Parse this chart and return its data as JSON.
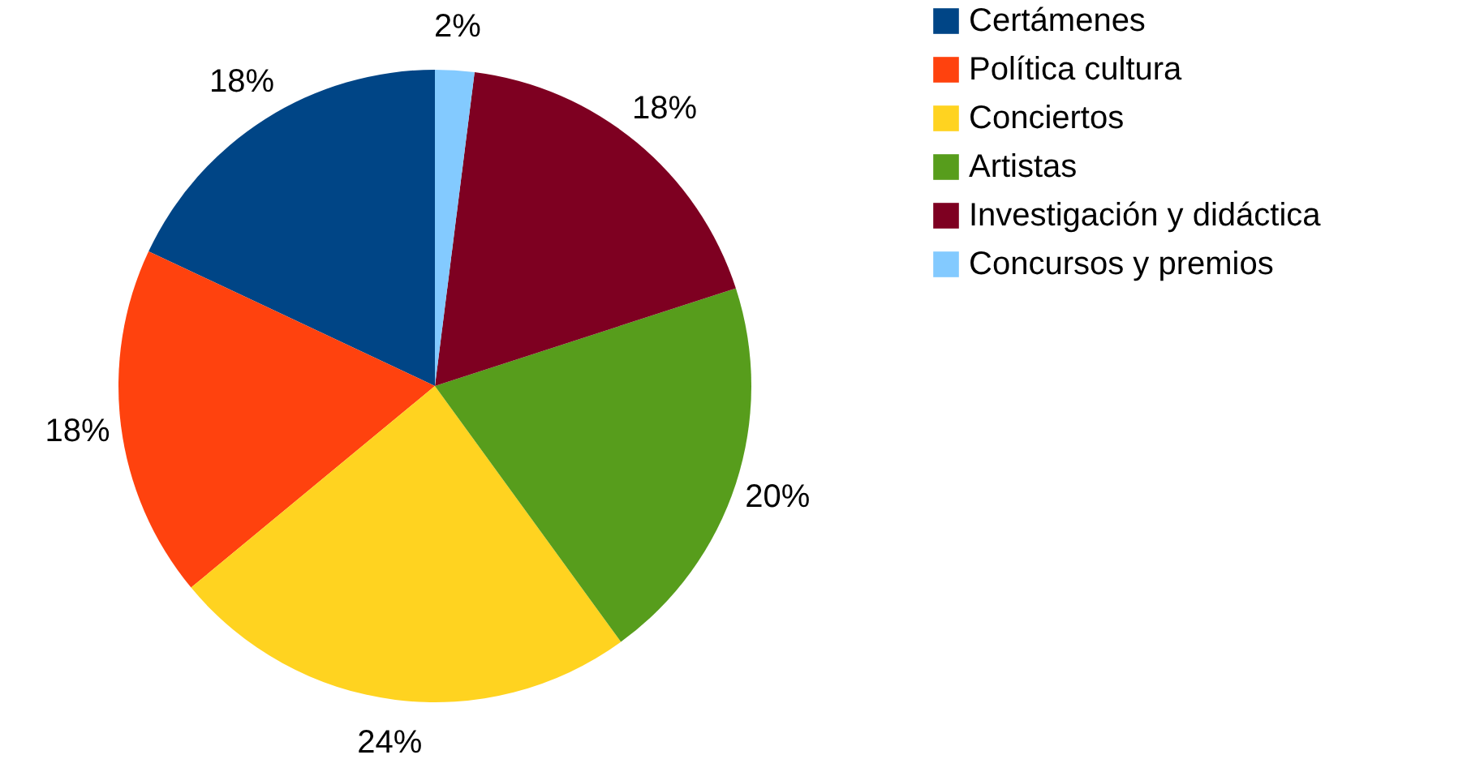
{
  "chart_data": {
    "type": "pie",
    "categories": [
      "Certámenes",
      "Política cultura",
      "Conciertos",
      "Artistas",
      "Investigación y didáctica",
      "Concursos y premios"
    ],
    "values": [
      18,
      18,
      24,
      20,
      18,
      2
    ],
    "colors": [
      "#004586",
      "#ff420e",
      "#ffd320",
      "#579d1c",
      "#7e0021",
      "#83caff"
    ],
    "value_labels": [
      "18%",
      "18%",
      "24%",
      "20%",
      "18%",
      "2%"
    ],
    "legend": "right"
  }
}
